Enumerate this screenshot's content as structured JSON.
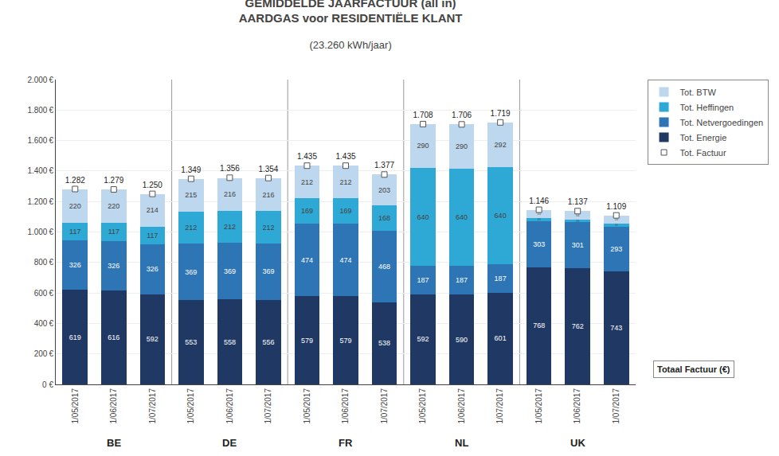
{
  "chart_data": {
    "type": "bar",
    "stacked": true,
    "title": [
      "GEMIDDELDE JAARFACTUUR (all in)",
      "AARDGAS voor RESIDENTIËLE KLANT"
    ],
    "subtitle": "(23.260 kWh/jaar)",
    "categories": [
      "1/05/2017",
      "1/06/2017",
      "1/07/2017",
      "1/05/2017",
      "1/06/2017",
      "1/07/2017",
      "1/05/2017",
      "1/06/2017",
      "1/07/2017",
      "1/05/2017",
      "1/06/2017",
      "1/07/2017",
      "1/05/2017",
      "1/06/2017",
      "1/07/2017"
    ],
    "groups": [
      "BE",
      "DE",
      "FR",
      "NL",
      "UK"
    ],
    "series": [
      {
        "name": "Tot. Energie",
        "color": "#1F3864",
        "values": [
          619,
          616,
          592,
          553,
          558,
          556,
          579,
          579,
          538,
          592,
          590,
          601,
          768,
          762,
          743
        ]
      },
      {
        "name": "Tot. Netvergoedingen",
        "color": "#2E75B6",
        "values": [
          326,
          326,
          326,
          369,
          369,
          369,
          474,
          474,
          468,
          187,
          187,
          187,
          303,
          301,
          293
        ]
      },
      {
        "name": "Tot. Heffingen",
        "color": "#2EA8D5",
        "values": [
          117,
          117,
          117,
          212,
          212,
          212,
          169,
          169,
          168,
          640,
          640,
          640,
          20,
          20,
          19
        ]
      },
      {
        "name": "Tot. BTW",
        "color": "#BDD7EE",
        "values": [
          220,
          220,
          214,
          215,
          216,
          216,
          212,
          212,
          203,
          290,
          290,
          292,
          55,
          54,
          53
        ]
      },
      {
        "name": "Tot. Factuur",
        "type": "total",
        "color": "#FFFFFF",
        "values": [
          1282,
          1279,
          1250,
          1349,
          1356,
          1354,
          1435,
          1435,
          1377,
          1708,
          1706,
          1719,
          1146,
          1137,
          1109
        ],
        "value_labels": [
          "1.282",
          "1.279",
          "1.250",
          "1.349",
          "1.356",
          "1.354",
          "1.435",
          "1.435",
          "1.377",
          "1.708",
          "1.706",
          "1.719",
          "1.146",
          "1.137",
          "1.109"
        ]
      }
    ],
    "annotations": [
      "Totaal Factuur (€)"
    ],
    "ylim": [
      0,
      2000
    ],
    "yticks": [
      {
        "value": 0,
        "label": "0 €"
      },
      {
        "value": 200,
        "label": "200 €"
      },
      {
        "value": 400,
        "label": "400 €"
      },
      {
        "value": 600,
        "label": "600 €"
      },
      {
        "value": 800,
        "label": "800 €"
      },
      {
        "value": 1000,
        "label": "1.000 €"
      },
      {
        "value": 1200,
        "label": "1.200 €"
      },
      {
        "value": 1400,
        "label": "1.400 €"
      },
      {
        "value": 1600,
        "label": "1.600 €"
      },
      {
        "value": 1800,
        "label": "1.800 €"
      },
      {
        "value": 2000,
        "label": "2.000 €"
      }
    ],
    "grid": true,
    "legend": "right",
    "data_labels": true
  }
}
